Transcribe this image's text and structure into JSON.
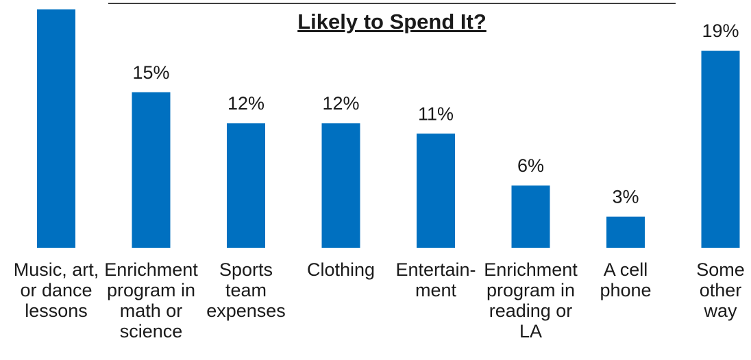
{
  "chart_data": {
    "type": "bar",
    "title": "Likely to Spend It?",
    "categories": [
      [
        "Music, art,",
        "or dance",
        "lessons"
      ],
      [
        "Enrichment",
        "program in",
        "math or",
        "science"
      ],
      [
        "Sports",
        "team",
        "expenses"
      ],
      [
        "Clothing"
      ],
      [
        "Entertain-",
        "ment"
      ],
      [
        "Enrichment",
        "program in",
        "reading or",
        "LA"
      ],
      [
        "A cell",
        "phone"
      ],
      [
        "Some",
        "other",
        "way"
      ]
    ],
    "values": [
      23,
      15,
      12,
      12,
      11,
      6,
      3,
      19
    ],
    "value_labels": [
      "",
      "15%",
      "12%",
      "12%",
      "11%",
      "6%",
      "3%",
      "19%"
    ],
    "color": "#0070C0",
    "grid": false,
    "legend": "none",
    "ylim": [
      0,
      23
    ]
  }
}
